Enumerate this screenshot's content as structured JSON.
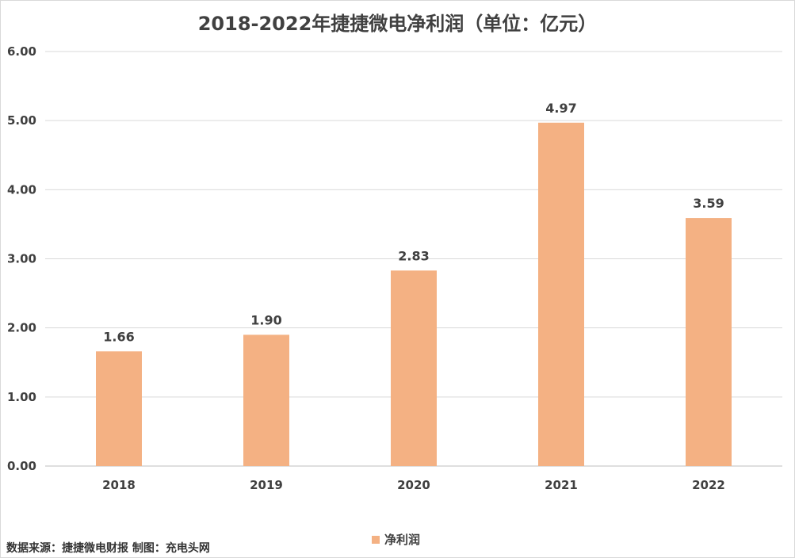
{
  "chart_data": {
    "type": "bar",
    "title": "2018-2022年捷捷微电净利润（单位：亿元）",
    "categories": [
      "2018",
      "2019",
      "2020",
      "2021",
      "2022"
    ],
    "series": [
      {
        "name": "净利润",
        "values": [
          1.66,
          1.9,
          2.83,
          4.97,
          3.59
        ],
        "color": "#F4B183"
      }
    ],
    "data_labels": [
      "1.66",
      "1.90",
      "2.83",
      "4.97",
      "3.59"
    ],
    "ylim": [
      0,
      6
    ],
    "yticks": [
      "0.00",
      "1.00",
      "2.00",
      "3.00",
      "4.00",
      "5.00",
      "6.00"
    ],
    "grid": true,
    "legend": "bottom-center",
    "xlabel": "",
    "ylabel": ""
  },
  "footer": {
    "source": "数据来源：捷捷微电财报 制图：充电头网"
  }
}
